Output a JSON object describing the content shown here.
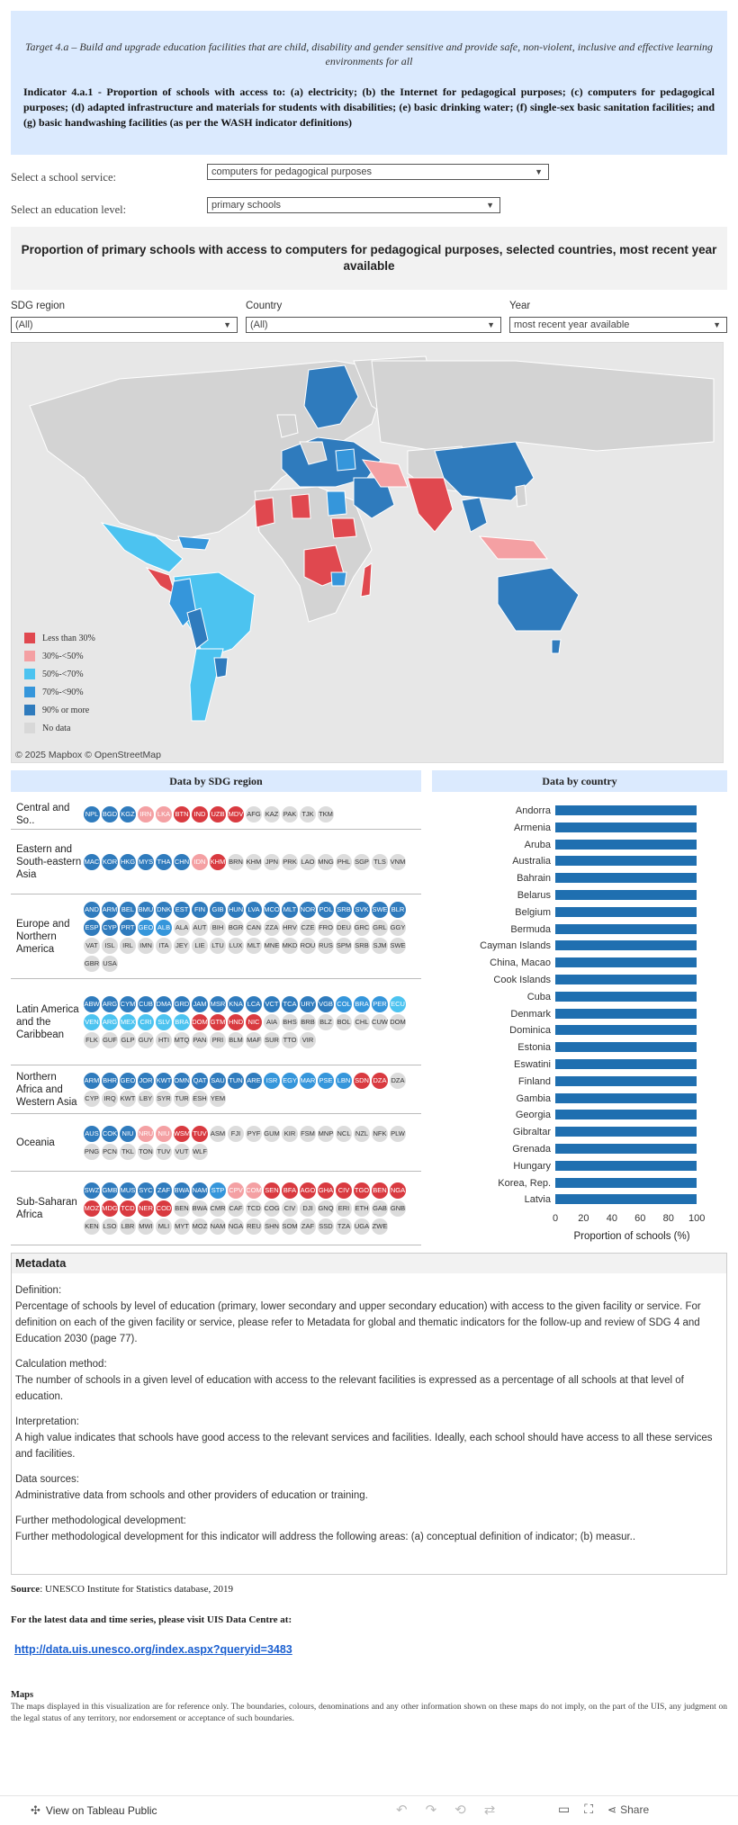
{
  "header": {
    "target": "Target 4.a – Build and upgrade education facilities that are child, disability and gender sensitive and provide safe, non-violent, inclusive and effective learning environments for all",
    "indicator": "Indicator 4.a.1 - Proportion of schools with access to: (a) electricity; (b) the Internet for pedagogical purposes; (c) computers for pedagogical purposes; (d) adapted infrastructure and materials for students with disabilities; (e) basic drinking water; (f) single-sex basic sanitation facilities; and (g) basic handwashing facilities (as per the WASH indicator definitions)"
  },
  "controls": {
    "service_label": "Select a school service:",
    "service_value": "computers for pedagogical purposes",
    "level_label": "Select an education level:",
    "level_value": "primary schools"
  },
  "chart_title": "Proportion of primary schools with access to computers for pedagogical purposes, selected countries, most recent year available",
  "filters": {
    "region_label": "SDG region",
    "region_value": "(All)",
    "country_label": "Country",
    "country_value": "(All)",
    "year_label": "Year",
    "year_value": "most recent year available"
  },
  "map": {
    "legend": [
      {
        "label": "Less than 30%",
        "color": "#e0484f"
      },
      {
        "label": "30%-<50%",
        "color": "#f4a0a3"
      },
      {
        "label": "50%-<70%",
        "color": "#4cc3f0"
      },
      {
        "label": "70%-<90%",
        "color": "#3596db"
      },
      {
        "label": "90% or more",
        "color": "#2f7bbd"
      },
      {
        "label": "No data",
        "color": "#d8d8d8"
      }
    ],
    "attribution": "© 2025 Mapbox  © OpenStreetMap"
  },
  "panels": {
    "region_title": "Data by SDG region",
    "country_title": "Data by country"
  },
  "regions": [
    {
      "name": "Central and So..",
      "height": 34,
      "cells": [
        [
          "NPL",
          "5"
        ],
        [
          "BGD",
          "5"
        ],
        [
          "KGZ",
          "5"
        ],
        [
          "IRN",
          "2"
        ],
        [
          "LKA",
          "2"
        ],
        [
          "BTN",
          "1"
        ],
        [
          "IND",
          "1"
        ],
        [
          "UZB",
          "1"
        ],
        [
          "MDV",
          "1"
        ],
        [
          "AFG",
          "0"
        ],
        [
          "KAZ",
          "0"
        ],
        [
          "PAK",
          "0"
        ],
        [
          "TJK",
          "0"
        ],
        [
          "TKM",
          "0"
        ]
      ]
    },
    {
      "name": "Eastern and South-eastern Asia",
      "height": 72,
      "cells": [
        [
          "MAC",
          "5"
        ],
        [
          "KOR",
          "5"
        ],
        [
          "HKG",
          "5"
        ],
        [
          "MYS",
          "5"
        ],
        [
          "THA",
          "5"
        ],
        [
          "CHN",
          "5"
        ],
        [
          "IDN",
          "2"
        ],
        [
          "KHM",
          "1"
        ],
        [
          "BRN",
          "0"
        ],
        [
          "KHM",
          "0"
        ],
        [
          "JPN",
          "0"
        ],
        [
          "PRK",
          "0"
        ],
        [
          "LAO",
          "0"
        ],
        [
          "MNG",
          "0"
        ],
        [
          "PHL",
          "0"
        ],
        [
          "SGP",
          "0"
        ],
        [
          "TLS",
          "0"
        ],
        [
          "VNM",
          "0"
        ]
      ]
    },
    {
      "name": "Europe and Northern America",
      "height": 94,
      "cells": [
        [
          "AND",
          "5"
        ],
        [
          "ARM",
          "5"
        ],
        [
          "BEL",
          "5"
        ],
        [
          "BMU",
          "5"
        ],
        [
          "DNK",
          "5"
        ],
        [
          "EST",
          "5"
        ],
        [
          "FIN",
          "5"
        ],
        [
          "GIB",
          "5"
        ],
        [
          "HUN",
          "5"
        ],
        [
          "LVA",
          "5"
        ],
        [
          "MCO",
          "5"
        ],
        [
          "MLT",
          "5"
        ],
        [
          "NOR",
          "5"
        ],
        [
          "POL",
          "5"
        ],
        [
          "SRB",
          "5"
        ],
        [
          "SVK",
          "5"
        ],
        [
          "SWE",
          "5"
        ],
        [
          "BLR",
          "5"
        ],
        [
          "ESP",
          "5"
        ],
        [
          "CYP",
          "5"
        ],
        [
          "PRT",
          "5"
        ],
        [
          "GEO",
          "4"
        ],
        [
          "ALB",
          "4"
        ],
        [
          "ALA",
          "0"
        ],
        [
          "AUT",
          "0"
        ],
        [
          "BIH",
          "0"
        ],
        [
          "BGR",
          "0"
        ],
        [
          "CAN",
          "0"
        ],
        [
          "ZZA",
          "0"
        ],
        [
          "HRV",
          "0"
        ],
        [
          "CZE",
          "0"
        ],
        [
          "FRO",
          "0"
        ],
        [
          "DEU",
          "0"
        ],
        [
          "GRC",
          "0"
        ],
        [
          "GRL",
          "0"
        ],
        [
          "GGY",
          "0"
        ],
        [
          "VAT",
          "0"
        ],
        [
          "ISL",
          "0"
        ],
        [
          "IRL",
          "0"
        ],
        [
          "IMN",
          "0"
        ],
        [
          "ITA",
          "0"
        ],
        [
          "JEY",
          "0"
        ],
        [
          "LIE",
          "0"
        ],
        [
          "LTU",
          "0"
        ],
        [
          "LUX",
          "0"
        ],
        [
          "MLT",
          "0"
        ],
        [
          "MNE",
          "0"
        ],
        [
          "MKD",
          "0"
        ],
        [
          "ROU",
          "0"
        ],
        [
          "RUS",
          "0"
        ],
        [
          "SPM",
          "0"
        ],
        [
          "SRB",
          "0"
        ],
        [
          "SJM",
          "0"
        ],
        [
          "SWE",
          "0"
        ],
        [
          "GBR",
          "0"
        ],
        [
          "USA",
          "0"
        ]
      ]
    },
    {
      "name": "Latin America and the Caribbean",
      "height": 96,
      "cells": [
        [
          "ABW",
          "5"
        ],
        [
          "ARG",
          "5"
        ],
        [
          "CYM",
          "5"
        ],
        [
          "CUB",
          "5"
        ],
        [
          "DMA",
          "5"
        ],
        [
          "GRD",
          "5"
        ],
        [
          "JAM",
          "5"
        ],
        [
          "MSR",
          "5"
        ],
        [
          "KNA",
          "5"
        ],
        [
          "LCA",
          "5"
        ],
        [
          "VCT",
          "5"
        ],
        [
          "TCA",
          "5"
        ],
        [
          "URY",
          "5"
        ],
        [
          "VGB",
          "5"
        ],
        [
          "COL",
          "4"
        ],
        [
          "BRA",
          "4"
        ],
        [
          "PER",
          "4"
        ],
        [
          "ECU",
          "3"
        ],
        [
          "VEN",
          "3"
        ],
        [
          "ARG",
          "3"
        ],
        [
          "MEX",
          "3"
        ],
        [
          "CRI",
          "3"
        ],
        [
          "SLV",
          "3"
        ],
        [
          "BRA",
          "3"
        ],
        [
          "DOM",
          "1"
        ],
        [
          "GTM",
          "1"
        ],
        [
          "HND",
          "1"
        ],
        [
          "NIC",
          "1"
        ],
        [
          "AIA",
          "0"
        ],
        [
          "BHS",
          "0"
        ],
        [
          "BRB",
          "0"
        ],
        [
          "BLZ",
          "0"
        ],
        [
          "BOL",
          "0"
        ],
        [
          "CHL",
          "0"
        ],
        [
          "CUW",
          "0"
        ],
        [
          "DOM",
          "0"
        ],
        [
          "FLK",
          "0"
        ],
        [
          "GUF",
          "0"
        ],
        [
          "GLP",
          "0"
        ],
        [
          "GUY",
          "0"
        ],
        [
          "HTI",
          "0"
        ],
        [
          "MTQ",
          "0"
        ],
        [
          "PAN",
          "0"
        ],
        [
          "PRI",
          "0"
        ],
        [
          "BLM",
          "0"
        ],
        [
          "MAF",
          "0"
        ],
        [
          "SUR",
          "0"
        ],
        [
          "TTO",
          "0"
        ],
        [
          "VIR",
          "0"
        ]
      ]
    },
    {
      "name": "Northern Africa and Western Asia",
      "height": 54,
      "cells": [
        [
          "ARM",
          "5"
        ],
        [
          "BHR",
          "5"
        ],
        [
          "GEO",
          "5"
        ],
        [
          "JOR",
          "5"
        ],
        [
          "KWT",
          "5"
        ],
        [
          "OMN",
          "5"
        ],
        [
          "QAT",
          "5"
        ],
        [
          "SAU",
          "5"
        ],
        [
          "TUN",
          "5"
        ],
        [
          "ARE",
          "5"
        ],
        [
          "ISR",
          "4"
        ],
        [
          "EGY",
          "4"
        ],
        [
          "MAR",
          "4"
        ],
        [
          "PSE",
          "4"
        ],
        [
          "LBN",
          "4"
        ],
        [
          "SDN",
          "1"
        ],
        [
          "DZA",
          "1"
        ],
        [
          "DZA",
          "0"
        ],
        [
          "CYP",
          "0"
        ],
        [
          "IRQ",
          "0"
        ],
        [
          "KWT",
          "0"
        ],
        [
          "LBY",
          "0"
        ],
        [
          "SYR",
          "0"
        ],
        [
          "TUR",
          "0"
        ],
        [
          "ESH",
          "0"
        ],
        [
          "YEM",
          "0"
        ]
      ]
    },
    {
      "name": "Oceania",
      "height": 64,
      "cells": [
        [
          "AUS",
          "5"
        ],
        [
          "COK",
          "5"
        ],
        [
          "NIU",
          "5"
        ],
        [
          "NRU",
          "2"
        ],
        [
          "NIU",
          "2"
        ],
        [
          "WSM",
          "1"
        ],
        [
          "TUV",
          "1"
        ],
        [
          "ASM",
          "0"
        ],
        [
          "FJI",
          "0"
        ],
        [
          "PYF",
          "0"
        ],
        [
          "GUM",
          "0"
        ],
        [
          "KIR",
          "0"
        ],
        [
          "FSM",
          "0"
        ],
        [
          "MNP",
          "0"
        ],
        [
          "NCL",
          "0"
        ],
        [
          "NZL",
          "0"
        ],
        [
          "NFK",
          "0"
        ],
        [
          "PLW",
          "0"
        ],
        [
          "PNG",
          "0"
        ],
        [
          "PCN",
          "0"
        ],
        [
          "TKL",
          "0"
        ],
        [
          "TON",
          "0"
        ],
        [
          "TUV",
          "0"
        ],
        [
          "VUT",
          "0"
        ],
        [
          "WLF",
          "0"
        ]
      ]
    },
    {
      "name": "Sub-Saharan Africa",
      "height": 82,
      "cells": [
        [
          "SWZ",
          "5"
        ],
        [
          "GMB",
          "5"
        ],
        [
          "MUS",
          "5"
        ],
        [
          "SYC",
          "5"
        ],
        [
          "ZAF",
          "5"
        ],
        [
          "BWA",
          "5"
        ],
        [
          "NAM",
          "5"
        ],
        [
          "STP",
          "4"
        ],
        [
          "CPV",
          "2"
        ],
        [
          "COM",
          "2"
        ],
        [
          "SEN",
          "1"
        ],
        [
          "BFA",
          "1"
        ],
        [
          "AGO",
          "1"
        ],
        [
          "GHA",
          "1"
        ],
        [
          "CIV",
          "1"
        ],
        [
          "TGO",
          "1"
        ],
        [
          "BEN",
          "1"
        ],
        [
          "NGA",
          "1"
        ],
        [
          "MOZ",
          "1"
        ],
        [
          "MDG",
          "1"
        ],
        [
          "TCD",
          "1"
        ],
        [
          "NER",
          "1"
        ],
        [
          "COD",
          "1"
        ],
        [
          "BEN",
          "0"
        ],
        [
          "BWA",
          "0"
        ],
        [
          "CMR",
          "0"
        ],
        [
          "CAF",
          "0"
        ],
        [
          "TCD",
          "0"
        ],
        [
          "COG",
          "0"
        ],
        [
          "CIV",
          "0"
        ],
        [
          "DJI",
          "0"
        ],
        [
          "GNQ",
          "0"
        ],
        [
          "ERI",
          "0"
        ],
        [
          "ETH",
          "0"
        ],
        [
          "GAB",
          "0"
        ],
        [
          "GNB",
          "0"
        ],
        [
          "KEN",
          "0"
        ],
        [
          "LSO",
          "0"
        ],
        [
          "LBR",
          "0"
        ],
        [
          "MWI",
          "0"
        ],
        [
          "MLI",
          "0"
        ],
        [
          "MYT",
          "0"
        ],
        [
          "MOZ",
          "0"
        ],
        [
          "NAM",
          "0"
        ],
        [
          "NGA",
          "0"
        ],
        [
          "REU",
          "0"
        ],
        [
          "SHN",
          "0"
        ],
        [
          "SOM",
          "0"
        ],
        [
          "ZAF",
          "0"
        ],
        [
          "SSD",
          "0"
        ],
        [
          "TZA",
          "0"
        ],
        [
          "UGA",
          "0"
        ],
        [
          "ZWE",
          "0"
        ]
      ]
    }
  ],
  "chart_data": {
    "type": "bar",
    "orientation": "horizontal",
    "categories": [
      "Andorra",
      "Armenia",
      "Aruba",
      "Australia",
      "Bahrain",
      "Belarus",
      "Belgium",
      "Bermuda",
      "Cayman Islands",
      "China, Macao",
      "Cook Islands",
      "Cuba",
      "Denmark",
      "Dominica",
      "Estonia",
      "Eswatini",
      "Finland",
      "Gambia",
      "Georgia",
      "Gibraltar",
      "Grenada",
      "Hungary",
      "Korea, Rep.",
      "Latvia"
    ],
    "values": [
      100,
      100,
      100,
      100,
      100,
      100,
      100,
      100,
      100,
      100,
      100,
      100,
      100,
      100,
      100,
      100,
      100,
      100,
      100,
      100,
      100,
      100,
      100,
      100
    ],
    "xlabel": "Proportion of schools (%)",
    "xticks": [
      0,
      20,
      40,
      60,
      80,
      100
    ],
    "xlim": [
      0,
      105
    ],
    "bar_color": "#1f6fb0"
  },
  "metadata": {
    "title": "Metadata",
    "blocks": [
      {
        "heading": "Definition:",
        "text": "Percentage of schools by level of education (primary, lower secondary and upper secondary education) with access to the given facility or service. For definition on each of the given facility or service, please refer to Metadata for global and thematic indicators for the follow-up and review of SDG 4 and Education 2030 (page 77)."
      },
      {
        "heading": "Calculation method:",
        "text": "The number of schools in a given level of education with access to the relevant facilities is expressed as a percentage of all schools at that level of education."
      },
      {
        "heading": "Interpretation:",
        "text": "A high value indicates that schools have good access to the relevant services and facilities. Ideally, each school should have access to all these services and facilities."
      },
      {
        "heading": "Data sources:",
        "text": "Administrative data from schools and other providers of education or training."
      },
      {
        "heading": "Further methodological development:",
        "text": "Further methodological development for this indicator will address the following areas: (a) conceptual definition of indicator; (b) measur.."
      }
    ]
  },
  "footer": {
    "source_label": "Source",
    "source_text": ": UNESCO Institute for Statistics database, 2019",
    "latest": "For the latest data and time series, please visit UIS Data Centre at:",
    "link": "http://data.uis.unesco.org/index.aspx?queryid=3483",
    "maps_title": "Maps",
    "maps_text": "The maps displayed in this visualization are for reference only. The boundaries, colours, denominations and any other information shown on these maps do not imply, on the part of the UIS, any judgment on the legal status of any territory, nor endorsement or acceptance of such boundaries."
  },
  "toolbar": {
    "view_label": "View on Tableau Public",
    "share_label": "Share"
  }
}
